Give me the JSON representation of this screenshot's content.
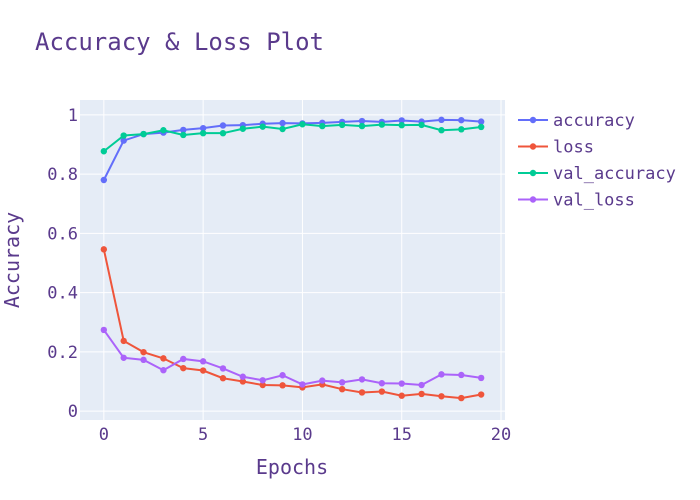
{
  "chart_data": {
    "type": "line",
    "title": "Accuracy & Loss Plot",
    "xlabel": "Epochs",
    "ylabel": "Accuracy",
    "xlim": [
      -1.2,
      20.2
    ],
    "ylim": [
      -0.03,
      1.05
    ],
    "xticks": [
      0,
      5,
      10,
      15,
      20
    ],
    "xtick_labels": [
      "0",
      "5",
      "10",
      "15",
      "20"
    ],
    "yticks": [
      0,
      0.2,
      0.4,
      0.6,
      0.8,
      1
    ],
    "ytick_labels": [
      "0",
      "0.2",
      "0.4",
      "0.6",
      "0.8",
      "1"
    ],
    "grid": true,
    "legend_position": "right",
    "x": [
      0,
      1,
      2,
      3,
      4,
      5,
      6,
      7,
      8,
      9,
      10,
      11,
      12,
      13,
      14,
      15,
      16,
      17,
      18,
      19
    ],
    "series": [
      {
        "name": "accuracy",
        "color": "#636efa",
        "values": [
          0.78,
          0.913,
          0.935,
          0.94,
          0.949,
          0.955,
          0.964,
          0.965,
          0.97,
          0.972,
          0.971,
          0.973,
          0.976,
          0.979,
          0.976,
          0.981,
          0.977,
          0.983,
          0.982,
          0.977
        ]
      },
      {
        "name": "loss",
        "color": "#ef553b",
        "values": [
          0.546,
          0.237,
          0.199,
          0.178,
          0.145,
          0.137,
          0.111,
          0.1,
          0.088,
          0.087,
          0.08,
          0.09,
          0.074,
          0.063,
          0.066,
          0.052,
          0.058,
          0.05,
          0.044,
          0.056
        ]
      },
      {
        "name": "val_accuracy",
        "color": "#00cc96",
        "values": [
          0.877,
          0.93,
          0.935,
          0.948,
          0.932,
          0.938,
          0.938,
          0.953,
          0.96,
          0.952,
          0.968,
          0.962,
          0.966,
          0.962,
          0.967,
          0.965,
          0.966,
          0.948,
          0.951,
          0.959
        ]
      },
      {
        "name": "val_loss",
        "color": "#ab63fa",
        "values": [
          0.274,
          0.18,
          0.173,
          0.138,
          0.176,
          0.168,
          0.144,
          0.116,
          0.104,
          0.121,
          0.09,
          0.103,
          0.097,
          0.107,
          0.094,
          0.093,
          0.088,
          0.124,
          0.122,
          0.112
        ]
      }
    ]
  },
  "colors": {
    "text": "#5a3a8c",
    "plot_bg": "#e5ecf6",
    "grid": "#ffffff"
  }
}
